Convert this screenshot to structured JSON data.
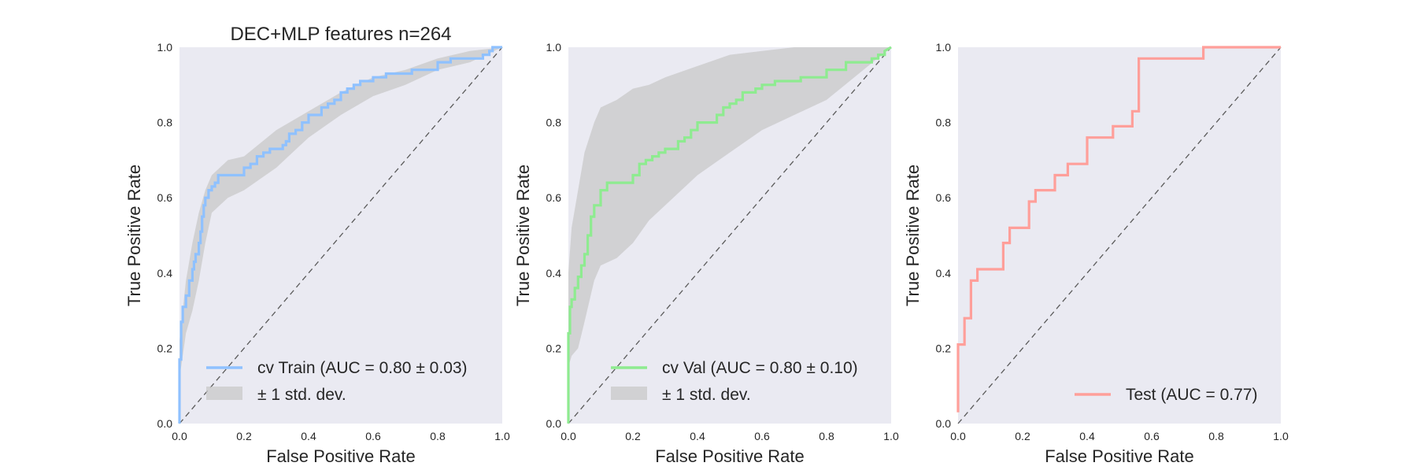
{
  "chart_data": [
    {
      "type": "line",
      "title": "DEC+MLP features n=264",
      "xlabel": "False Positive Rate",
      "ylabel": "True Positive Rate",
      "xlim": [
        0,
        1
      ],
      "ylim": [
        0,
        1
      ],
      "x_ticks": [
        "0.0",
        "0.2",
        "0.4",
        "0.6",
        "0.8",
        "1.0"
      ],
      "y_ticks": [
        "0.0",
        "0.2",
        "0.4",
        "0.6",
        "0.8",
        "1.0"
      ],
      "grid": false,
      "background": "#eaeaf2",
      "legend_position": "lower-right",
      "series": [
        {
          "name": "cv Train (AUC = 0.80 ± 0.03)",
          "color": "#8fc1ff",
          "x": [
            0,
            0,
            0.005,
            0.005,
            0.01,
            0.01,
            0.02,
            0.02,
            0.03,
            0.03,
            0.04,
            0.04,
            0.045,
            0.045,
            0.05,
            0.05,
            0.06,
            0.06,
            0.065,
            0.065,
            0.07,
            0.07,
            0.075,
            0.075,
            0.08,
            0.08,
            0.09,
            0.09,
            0.1,
            0.1,
            0.11,
            0.11,
            0.12,
            0.12,
            0.2,
            0.2,
            0.22,
            0.22,
            0.24,
            0.24,
            0.26,
            0.26,
            0.28,
            0.28,
            0.32,
            0.32,
            0.33,
            0.33,
            0.34,
            0.34,
            0.36,
            0.36,
            0.38,
            0.38,
            0.4,
            0.4,
            0.44,
            0.44,
            0.46,
            0.46,
            0.48,
            0.48,
            0.5,
            0.5,
            0.52,
            0.52,
            0.54,
            0.54,
            0.56,
            0.56,
            0.6,
            0.6,
            0.64,
            0.64,
            0.72,
            0.72,
            0.8,
            0.8,
            0.84,
            0.84,
            0.94,
            0.94,
            0.96,
            0.96,
            0.97,
            0.97,
            1.0
          ],
          "y": [
            0,
            0.17,
            0.17,
            0.27,
            0.27,
            0.31,
            0.31,
            0.34,
            0.34,
            0.38,
            0.38,
            0.41,
            0.41,
            0.43,
            0.43,
            0.45,
            0.45,
            0.48,
            0.48,
            0.51,
            0.51,
            0.55,
            0.55,
            0.58,
            0.58,
            0.6,
            0.6,
            0.62,
            0.62,
            0.63,
            0.63,
            0.64,
            0.64,
            0.66,
            0.66,
            0.68,
            0.68,
            0.69,
            0.69,
            0.71,
            0.71,
            0.72,
            0.72,
            0.73,
            0.73,
            0.74,
            0.74,
            0.75,
            0.75,
            0.77,
            0.77,
            0.78,
            0.78,
            0.8,
            0.8,
            0.82,
            0.82,
            0.84,
            0.84,
            0.85,
            0.85,
            0.86,
            0.86,
            0.88,
            0.88,
            0.89,
            0.89,
            0.9,
            0.9,
            0.91,
            0.91,
            0.92,
            0.92,
            0.93,
            0.93,
            0.94,
            0.94,
            0.96,
            0.96,
            0.97,
            0.97,
            0.98,
            0.98,
            0.99,
            0.99,
            1.0,
            1.0
          ],
          "band_x": [
            0,
            0.02,
            0.04,
            0.06,
            0.08,
            0.1,
            0.15,
            0.2,
            0.3,
            0.4,
            0.5,
            0.6,
            0.7,
            0.8,
            0.9,
            1.0
          ],
          "band_upper": [
            0.22,
            0.38,
            0.48,
            0.56,
            0.62,
            0.66,
            0.7,
            0.71,
            0.78,
            0.83,
            0.88,
            0.92,
            0.94,
            0.97,
            0.99,
            1.0
          ],
          "band_lower": [
            0.12,
            0.24,
            0.3,
            0.38,
            0.48,
            0.56,
            0.6,
            0.62,
            0.68,
            0.76,
            0.82,
            0.87,
            0.9,
            0.94,
            0.96,
            1.0
          ]
        }
      ],
      "band_legend": "± 1 std. dev.",
      "band_color": "#c8c8c8",
      "diagonal": true
    },
    {
      "type": "line",
      "xlabel": "False Positive Rate",
      "ylabel": "True Positive Rate",
      "xlim": [
        0,
        1
      ],
      "ylim": [
        0,
        1
      ],
      "x_ticks": [
        "0.0",
        "0.2",
        "0.4",
        "0.6",
        "0.8",
        "1.0"
      ],
      "y_ticks": [
        "0.0",
        "0.2",
        "0.4",
        "0.6",
        "0.8",
        "1.0"
      ],
      "grid": false,
      "background": "#eaeaf2",
      "legend_position": "lower-right",
      "series": [
        {
          "name": "cv Val (AUC = 0.80 ± 0.10)",
          "color": "#8eeb90",
          "x": [
            0,
            0,
            0.005,
            0.005,
            0.01,
            0.01,
            0.02,
            0.02,
            0.03,
            0.03,
            0.04,
            0.04,
            0.05,
            0.05,
            0.06,
            0.06,
            0.07,
            0.07,
            0.08,
            0.08,
            0.1,
            0.1,
            0.12,
            0.12,
            0.2,
            0.2,
            0.22,
            0.22,
            0.24,
            0.24,
            0.26,
            0.26,
            0.28,
            0.28,
            0.3,
            0.3,
            0.34,
            0.34,
            0.36,
            0.36,
            0.38,
            0.38,
            0.4,
            0.4,
            0.46,
            0.46,
            0.48,
            0.48,
            0.5,
            0.5,
            0.52,
            0.52,
            0.54,
            0.54,
            0.58,
            0.58,
            0.6,
            0.6,
            0.64,
            0.64,
            0.72,
            0.72,
            0.8,
            0.8,
            0.86,
            0.86,
            0.94,
            0.94,
            0.96,
            0.96,
            0.98,
            0.98,
            1.0
          ],
          "y": [
            0,
            0.24,
            0.24,
            0.31,
            0.31,
            0.33,
            0.33,
            0.36,
            0.36,
            0.39,
            0.39,
            0.42,
            0.42,
            0.45,
            0.45,
            0.5,
            0.5,
            0.55,
            0.55,
            0.58,
            0.58,
            0.62,
            0.62,
            0.64,
            0.64,
            0.66,
            0.66,
            0.69,
            0.69,
            0.7,
            0.7,
            0.71,
            0.71,
            0.72,
            0.72,
            0.73,
            0.73,
            0.75,
            0.75,
            0.76,
            0.76,
            0.78,
            0.78,
            0.8,
            0.8,
            0.82,
            0.82,
            0.84,
            0.84,
            0.85,
            0.85,
            0.86,
            0.86,
            0.88,
            0.88,
            0.89,
            0.89,
            0.9,
            0.9,
            0.91,
            0.91,
            0.92,
            0.92,
            0.94,
            0.94,
            0.96,
            0.96,
            0.97,
            0.97,
            0.98,
            0.98,
            0.99,
            1.0
          ],
          "band_x": [
            0,
            0.01,
            0.03,
            0.05,
            0.08,
            0.1,
            0.15,
            0.2,
            0.25,
            0.3,
            0.4,
            0.5,
            0.6,
            0.7,
            0.8,
            0.9,
            1.0
          ],
          "band_upper": [
            0.4,
            0.52,
            0.62,
            0.72,
            0.8,
            0.84,
            0.86,
            0.89,
            0.9,
            0.92,
            0.95,
            0.98,
            0.99,
            1.0,
            1.0,
            1.0,
            1.0
          ],
          "band_lower": [
            0.15,
            0.18,
            0.2,
            0.27,
            0.38,
            0.42,
            0.44,
            0.48,
            0.54,
            0.58,
            0.66,
            0.72,
            0.78,
            0.82,
            0.86,
            0.93,
            1.0
          ]
        }
      ],
      "band_legend": "± 1 std. dev.",
      "band_color": "#c8c8c8",
      "diagonal": true
    },
    {
      "type": "line",
      "xlabel": "False Positive Rate",
      "ylabel": "True Positive Rate",
      "xlim": [
        0,
        1
      ],
      "ylim": [
        0,
        1
      ],
      "x_ticks": [
        "0.0",
        "0.2",
        "0.4",
        "0.6",
        "0.8",
        "1.0"
      ],
      "y_ticks": [
        "0.0",
        "0.2",
        "0.4",
        "0.6",
        "0.8",
        "1.0"
      ],
      "grid": false,
      "background": "#eaeaf2",
      "legend_position": "lower-right",
      "series": [
        {
          "name": "Test (AUC = 0.77)",
          "color": "#ff9f9a",
          "x": [
            0,
            0,
            0.02,
            0.02,
            0.04,
            0.04,
            0.06,
            0.06,
            0.14,
            0.14,
            0.16,
            0.16,
            0.22,
            0.22,
            0.24,
            0.24,
            0.3,
            0.3,
            0.34,
            0.34,
            0.4,
            0.4,
            0.48,
            0.48,
            0.54,
            0.54,
            0.56,
            0.56,
            0.76,
            0.76,
            1.0
          ],
          "y": [
            0.03,
            0.21,
            0.21,
            0.28,
            0.28,
            0.38,
            0.38,
            0.41,
            0.41,
            0.48,
            0.48,
            0.52,
            0.52,
            0.59,
            0.59,
            0.62,
            0.62,
            0.66,
            0.66,
            0.69,
            0.69,
            0.76,
            0.76,
            0.79,
            0.79,
            0.83,
            0.83,
            0.97,
            0.97,
            1.0,
            1.0
          ]
        }
      ],
      "diagonal": true
    }
  ]
}
